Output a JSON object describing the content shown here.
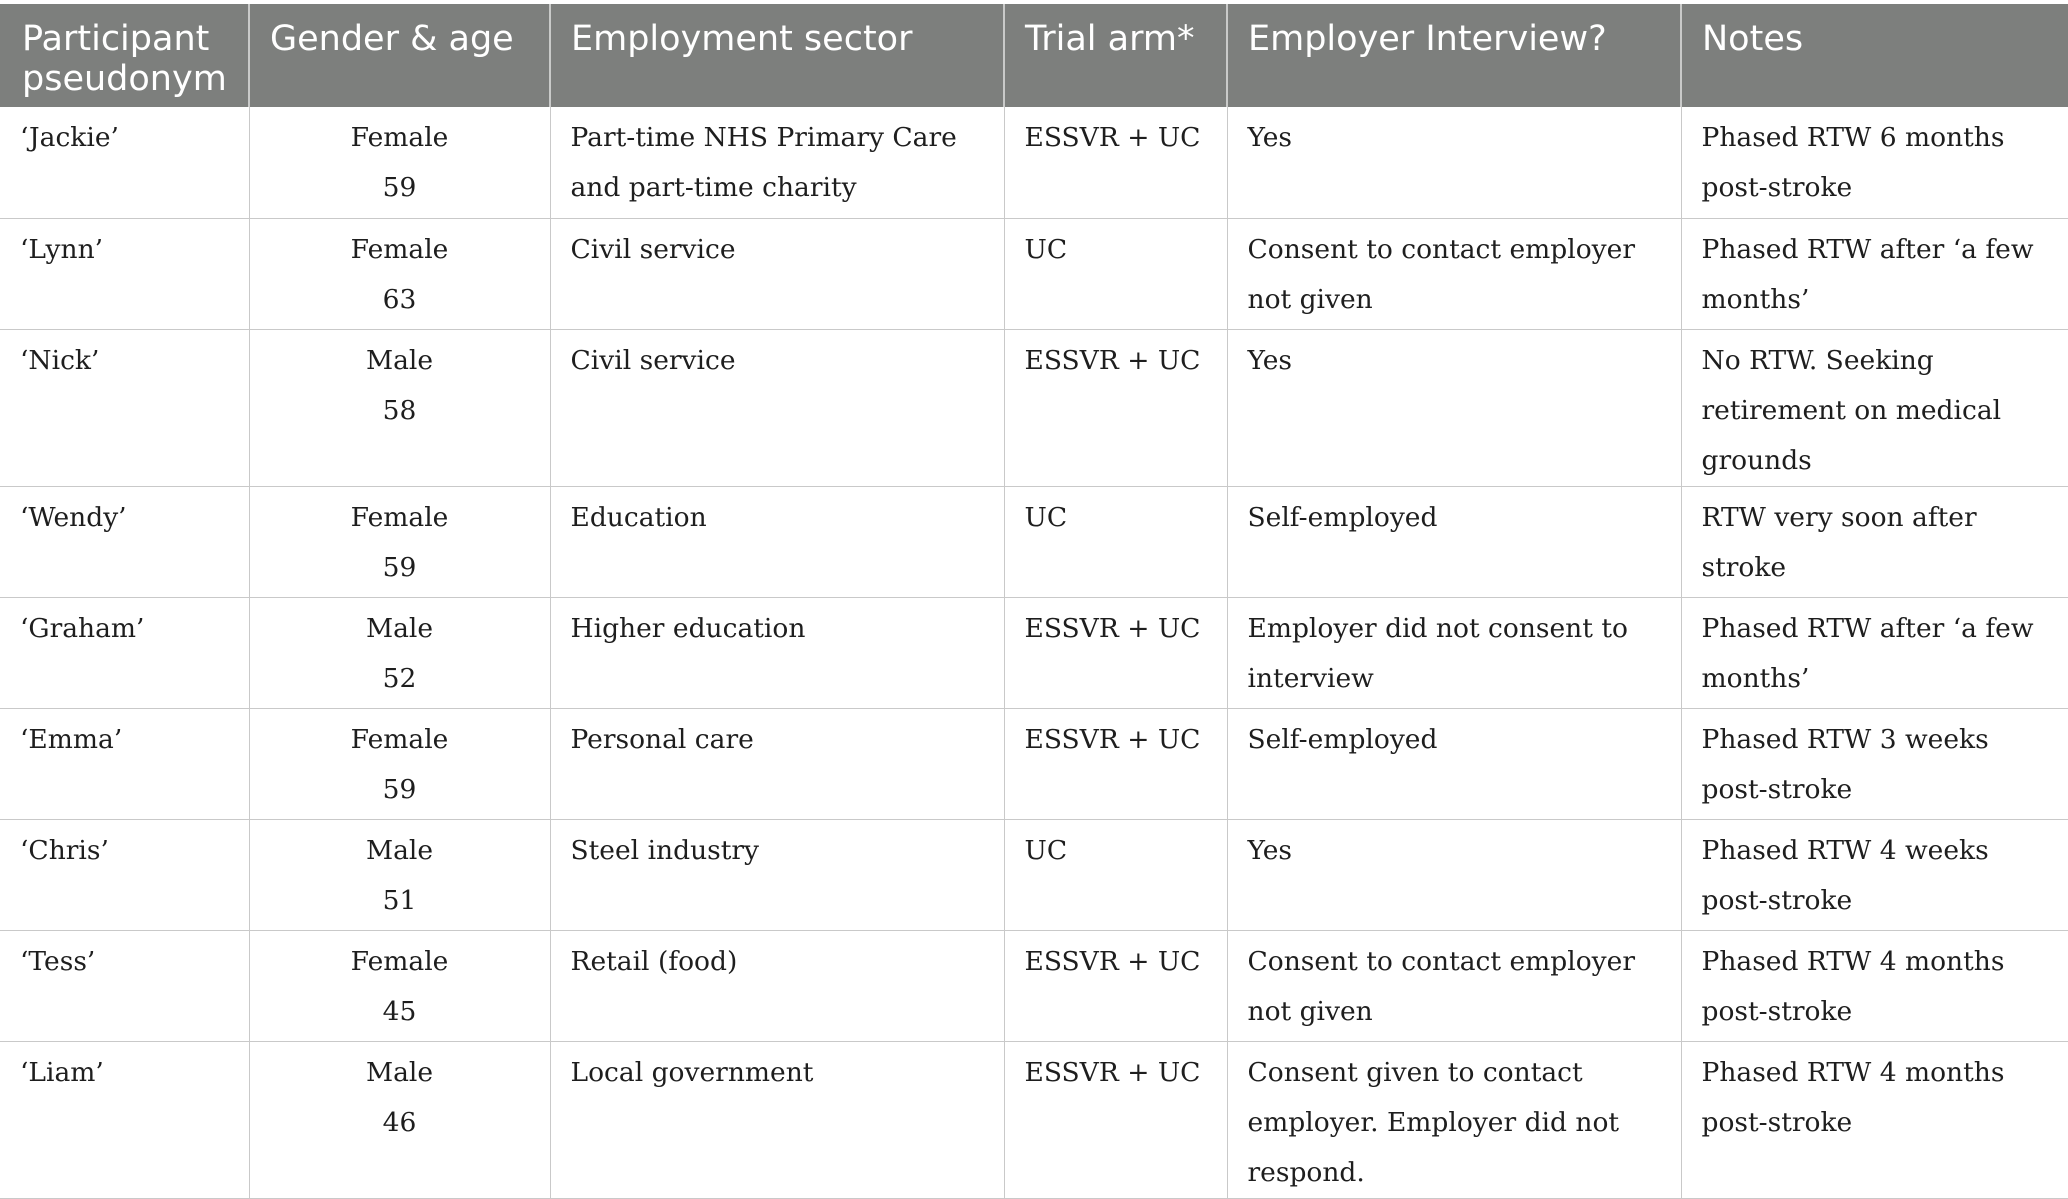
{
  "table": {
    "headers": [
      "Participant pseudonym",
      "Gender & age",
      "Employment sector",
      "Trial arm*",
      "Employer Interview?",
      "Notes"
    ],
    "rows": [
      {
        "pseudonym": "‘Jackie’",
        "gender": "Female",
        "age": "59",
        "sector": "Part-time NHS Primary Care and part-time charity",
        "arm": "ESSVR + UC",
        "interview": "Yes",
        "notes": "Phased RTW 6 months post-stroke"
      },
      {
        "pseudonym": "‘Lynn’",
        "gender": "Female",
        "age": "63",
        "sector": "Civil service",
        "arm": "UC",
        "interview": "Consent to contact employer not given",
        "notes": "Phased RTW after ‘a few months’"
      },
      {
        "pseudonym": "‘Nick’",
        "gender": "Male",
        "age": "58",
        "sector": "Civil service",
        "arm": "ESSVR + UC",
        "interview": "Yes",
        "notes": "No RTW. Seeking retirement on medical grounds"
      },
      {
        "pseudonym": "‘Wendy’",
        "gender": "Female",
        "age": "59",
        "sector": "Education",
        "arm": "UC",
        "interview": "Self-employed",
        "notes": "RTW very soon after stroke"
      },
      {
        "pseudonym": "‘Graham’",
        "gender": "Male",
        "age": "52",
        "sector": "Higher education",
        "arm": "ESSVR + UC",
        "interview": "Employer did not consent to interview",
        "notes": "Phased RTW after ‘a few months’"
      },
      {
        "pseudonym": "‘Emma’",
        "gender": "Female",
        "age": "59",
        "sector": "Personal care",
        "arm": "ESSVR + UC",
        "interview": "Self-employed",
        "notes": "Phased RTW 3 weeks post-stroke"
      },
      {
        "pseudonym": "‘Chris’",
        "gender": "Male",
        "age": "51",
        "sector": "Steel industry",
        "arm": "UC",
        "interview": "Yes",
        "notes": "Phased RTW 4 weeks post-stroke"
      },
      {
        "pseudonym": "‘Tess’",
        "gender": "Female",
        "age": "45",
        "sector": "Retail (food)",
        "arm": "ESSVR + UC",
        "interview": "Consent to contact employer not given",
        "notes": "Phased RTW 4 months post-stroke"
      },
      {
        "pseudonym": "‘Liam’",
        "gender": "Male",
        "age": "46",
        "sector": "Local government",
        "arm": "ESSVR + UC",
        "interview": "Consent given to contact employer. Employer did not respond.",
        "notes": "Phased RTW 4 months post-stroke"
      }
    ]
  }
}
